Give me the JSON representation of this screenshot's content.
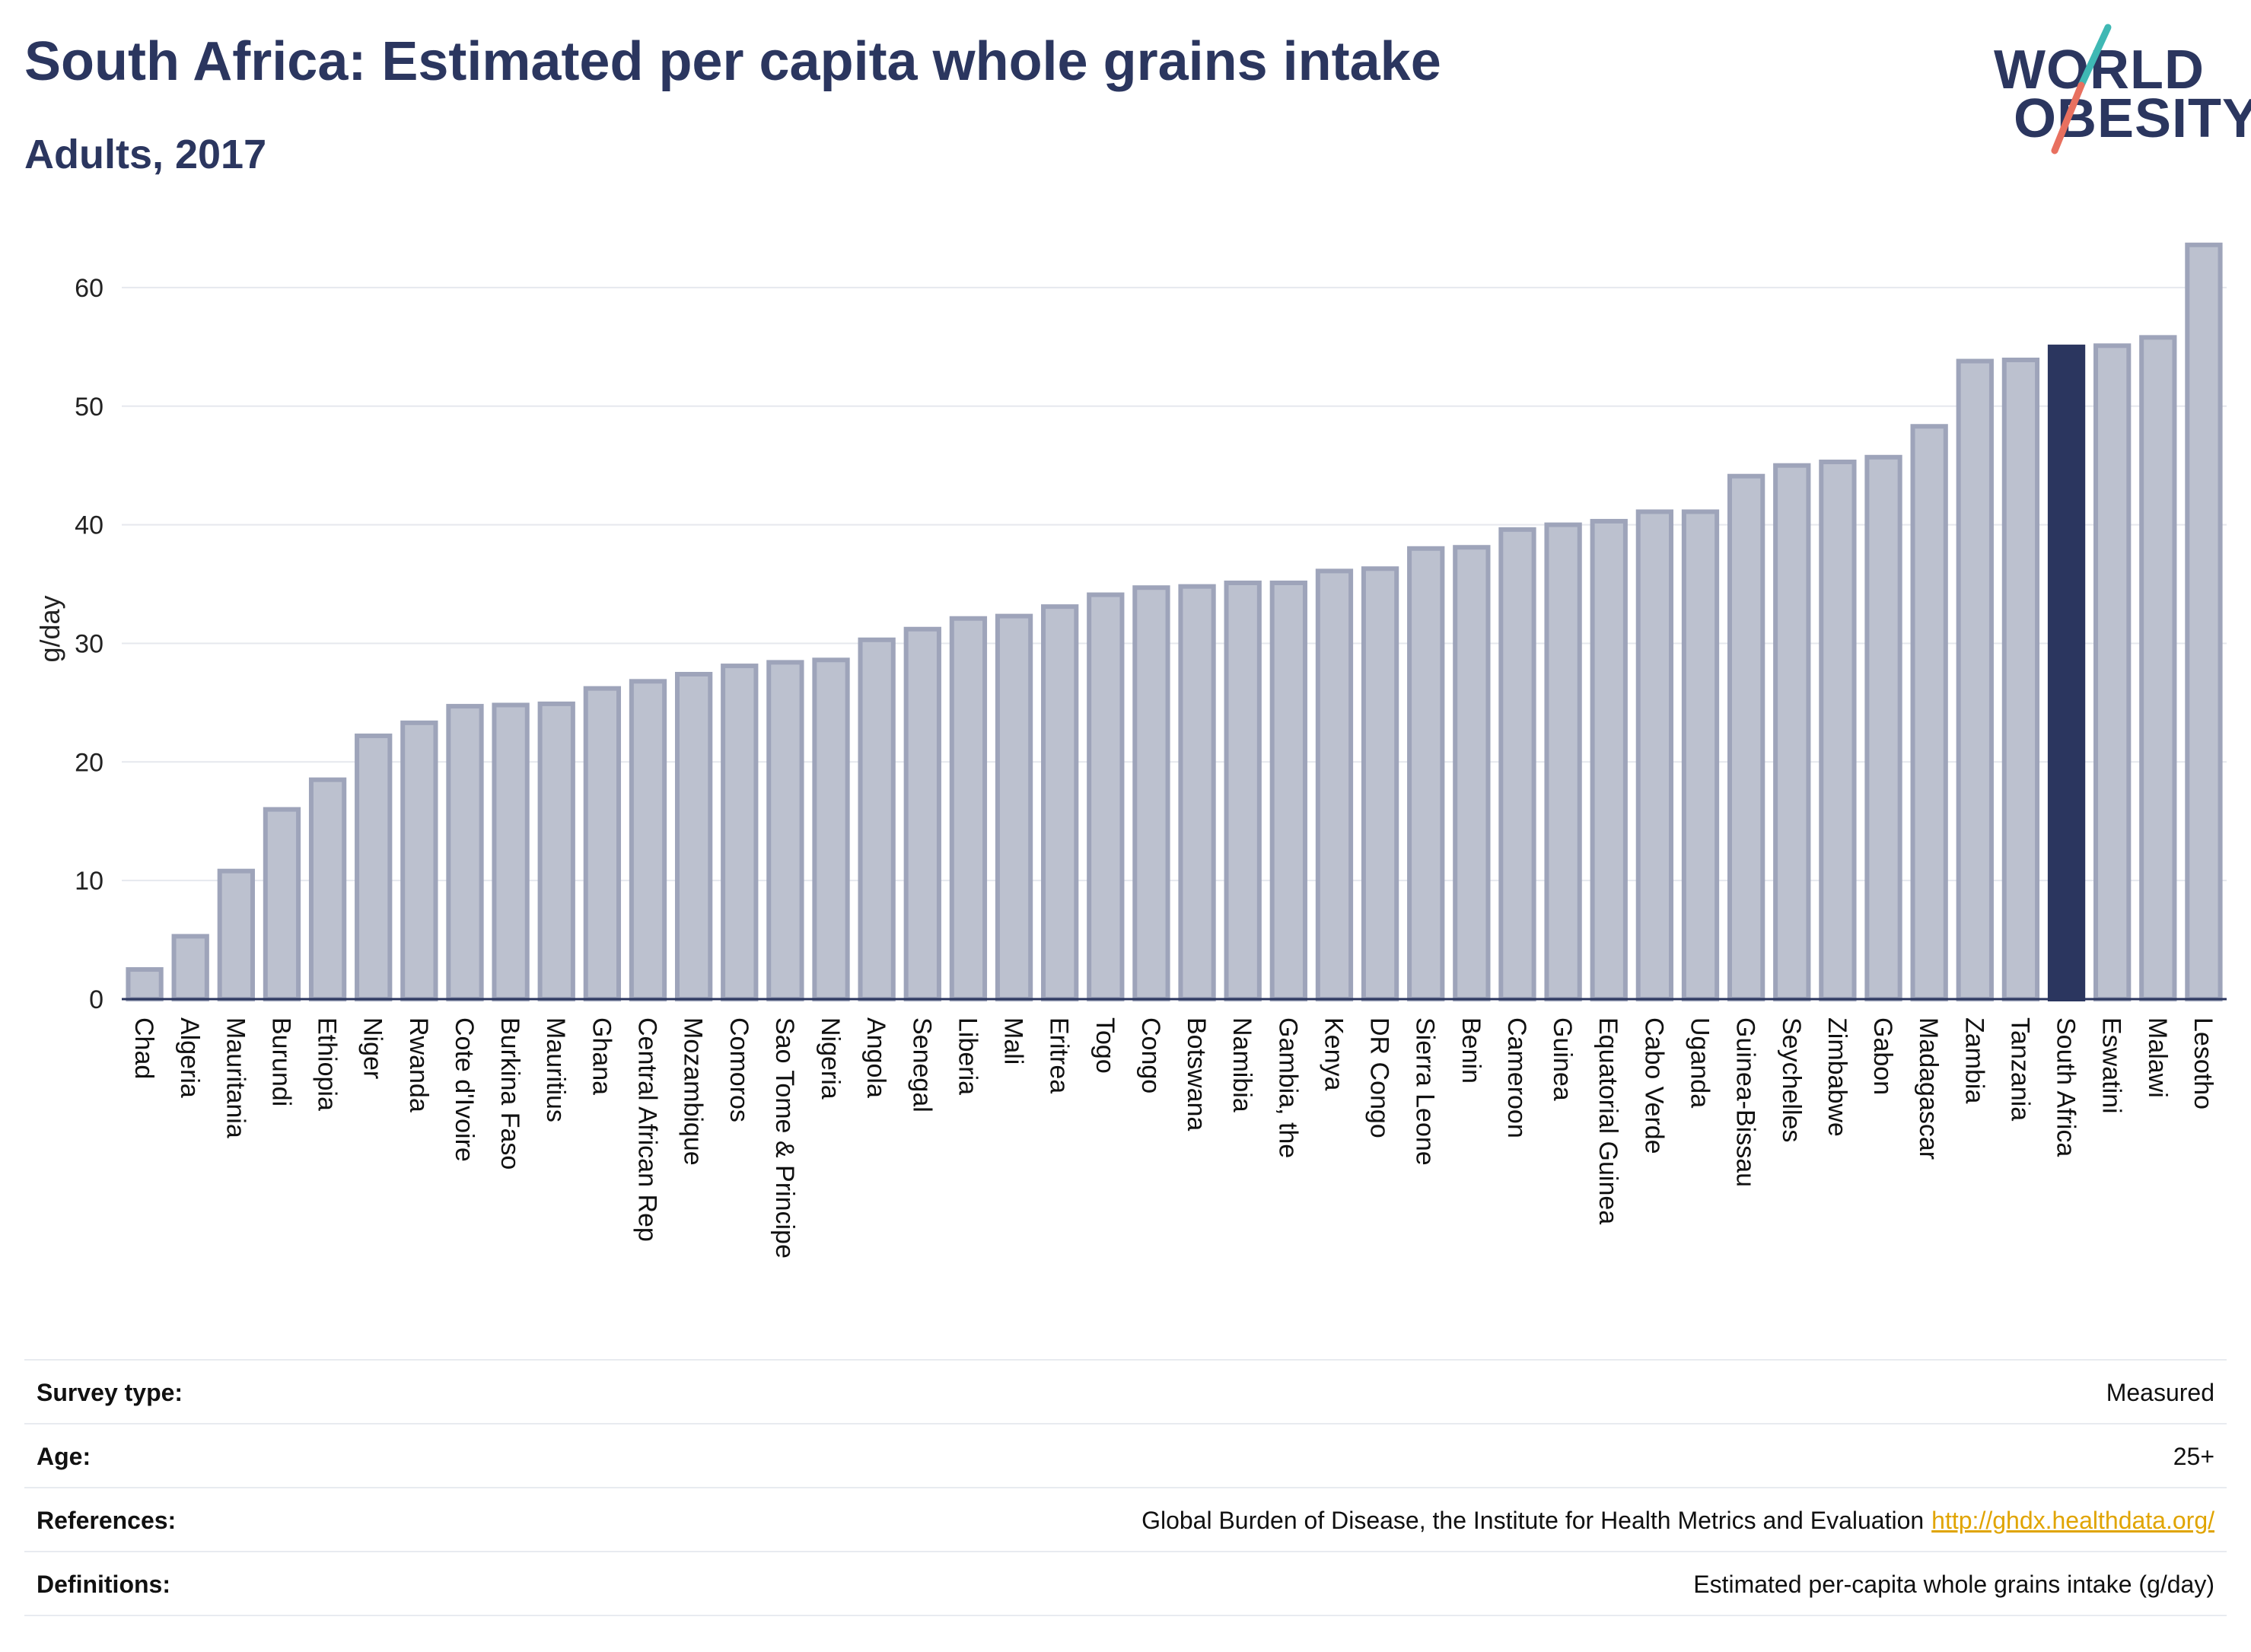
{
  "header": {
    "title": "South Africa: Estimated per capita whole grains intake",
    "subtitle": "Adults, 2017"
  },
  "logo": {
    "line1": "WORLD",
    "line2": "OBESITY",
    "brand_color": "#2b365f",
    "accent_teal": "#3fb8b4",
    "accent_coral": "#e8705f"
  },
  "colors": {
    "bar_fill": "#bcc1cf",
    "bar_stroke": "#9ea4ba",
    "highlight": "#2b365f"
  },
  "chart_data": {
    "type": "bar",
    "ylabel": "g/day",
    "xlabel": "",
    "ylim": [
      0,
      65
    ],
    "yticks": [
      0,
      10,
      20,
      30,
      40,
      50,
      60
    ],
    "grid": true,
    "highlight": "South Africa",
    "categories": [
      "Chad",
      "Algeria",
      "Mauritania",
      "Burundi",
      "Ethiopia",
      "Niger",
      "Rwanda",
      "Cote d'Ivoire",
      "Burkina Faso",
      "Mauritius",
      "Ghana",
      "Central African Rep",
      "Mozambique",
      "Comoros",
      "Sao Tome & Principe",
      "Nigeria",
      "Angola",
      "Senegal",
      "Liberia",
      "Mali",
      "Eritrea",
      "Togo",
      "Congo",
      "Botswana",
      "Namibia",
      "Gambia, the",
      "Kenya",
      "DR Congo",
      "Sierra Leone",
      "Benin",
      "Cameroon",
      "Guinea",
      "Equatorial Guinea",
      "Cabo Verde",
      "Uganda",
      "Guinea-Bissau",
      "Seychelles",
      "Zimbabwe",
      "Gabon",
      "Madagascar",
      "Zambia",
      "Tanzania",
      "South Africa",
      "Eswatini",
      "Malawi",
      "Lesotho"
    ],
    "values": [
      2.5,
      5.3,
      10.8,
      16.0,
      18.5,
      22.2,
      23.3,
      24.7,
      24.8,
      24.9,
      26.2,
      26.8,
      27.4,
      28.1,
      28.4,
      28.6,
      30.3,
      31.2,
      32.1,
      32.3,
      33.1,
      34.1,
      34.7,
      34.8,
      35.1,
      35.1,
      36.1,
      36.3,
      38.0,
      38.1,
      39.6,
      40.0,
      40.3,
      41.1,
      41.1,
      44.1,
      45.0,
      45.3,
      45.7,
      48.3,
      53.8,
      53.9,
      55.0,
      55.1,
      55.8,
      63.6
    ]
  },
  "metadata_table": [
    {
      "label": "Survey type:",
      "value": "Measured"
    },
    {
      "label": "Age:",
      "value": "25+"
    },
    {
      "label": "References:",
      "value": "Global Burden of Disease, the Institute for Health Metrics and Evaluation",
      "link": "http://ghdx.healthdata.org/"
    },
    {
      "label": "Definitions:",
      "value": "Estimated per-capita whole grains intake (g/day)"
    }
  ]
}
